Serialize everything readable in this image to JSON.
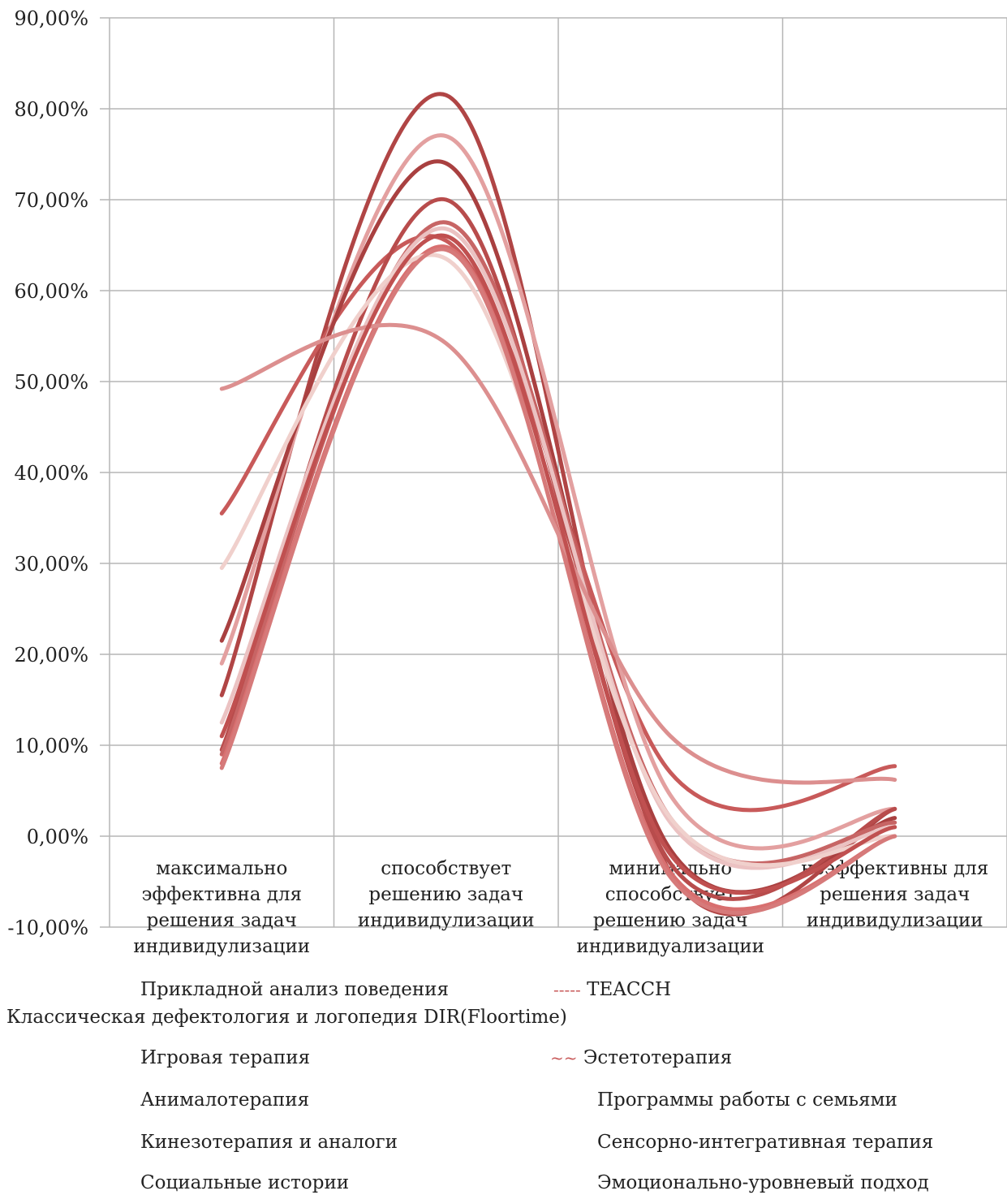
{
  "chart_data": {
    "type": "line",
    "title": "",
    "xlabel": "",
    "ylabel": "",
    "ylim": [
      -0.1,
      0.9
    ],
    "yticks": [
      -0.1,
      0.0,
      0.1,
      0.2,
      0.3,
      0.4,
      0.5,
      0.6,
      0.7,
      0.8,
      0.9
    ],
    "ytick_labels": [
      "-10,00%",
      "0,00%",
      "10,00%",
      "20,00%",
      "30,00%",
      "40,00%",
      "50,00%",
      "60,00%",
      "70,00%",
      "80,00%",
      "90,00%"
    ],
    "grid": true,
    "smooth": true,
    "categories": [
      [
        "максимально",
        "эффективна для",
        "решения задач",
        "индивидулизации"
      ],
      [
        "способствует",
        "решению задач",
        "индивидулизации"
      ],
      [
        "минимально",
        "способствует",
        "решению задач",
        "индивидуализации"
      ],
      [
        "неэффективны для",
        "решения задач",
        "индивидулизации"
      ]
    ],
    "series": [
      {
        "name": "Прикладной анализ поведения",
        "color": "#b04545",
        "values": [
          0.155,
          0.815,
          -0.04,
          0.03
        ]
      },
      {
        "name": "TEACCH",
        "color": "#c85a5a",
        "marker": "-----",
        "values": [
          0.355,
          0.655,
          0.07,
          0.077
        ]
      },
      {
        "name": "Классическая дефектология и логопедия",
        "color": "#e3a0a0",
        "values": [
          0.19,
          0.77,
          0.045,
          0.03
        ]
      },
      {
        "name": "DIR(Floortime)",
        "color": "#a94040",
        "values": [
          0.215,
          0.74,
          -0.015,
          0.02
        ]
      },
      {
        "name": "Игровая терапия",
        "color": "#b84c4c",
        "values": [
          0.095,
          0.7,
          -0.03,
          0.03
        ]
      },
      {
        "name": "Эстетотерапия",
        "color": "#c76565",
        "marker": "~~",
        "values": [
          0.09,
          0.675,
          0.02,
          0.015
        ]
      },
      {
        "name": "Анималотерапия",
        "color": "#ebc2c2",
        "values": [
          0.125,
          0.668,
          0.015,
          0.01
        ]
      },
      {
        "name": "Программы работы с семьями",
        "color": "#d87070",
        "values": [
          0.08,
          0.648,
          -0.04,
          0.0
        ]
      },
      {
        "name": "Кинезотерапия и аналоги",
        "color": "#f0d0cc",
        "values": [
          0.295,
          0.635,
          0.02,
          0.0
        ]
      },
      {
        "name": "Сенсорно-интегративная терапия",
        "color": "#d67a7a",
        "values": [
          0.075,
          0.645,
          -0.045,
          0.0
        ]
      },
      {
        "name": "Социальные истории",
        "color": "#dc8f8f",
        "values": [
          0.492,
          0.542,
          0.11,
          0.062
        ]
      },
      {
        "name": "Эмоционально-уровневый подход",
        "color": "#c05050",
        "values": [
          0.11,
          0.66,
          -0.02,
          0.01
        ]
      }
    ]
  }
}
